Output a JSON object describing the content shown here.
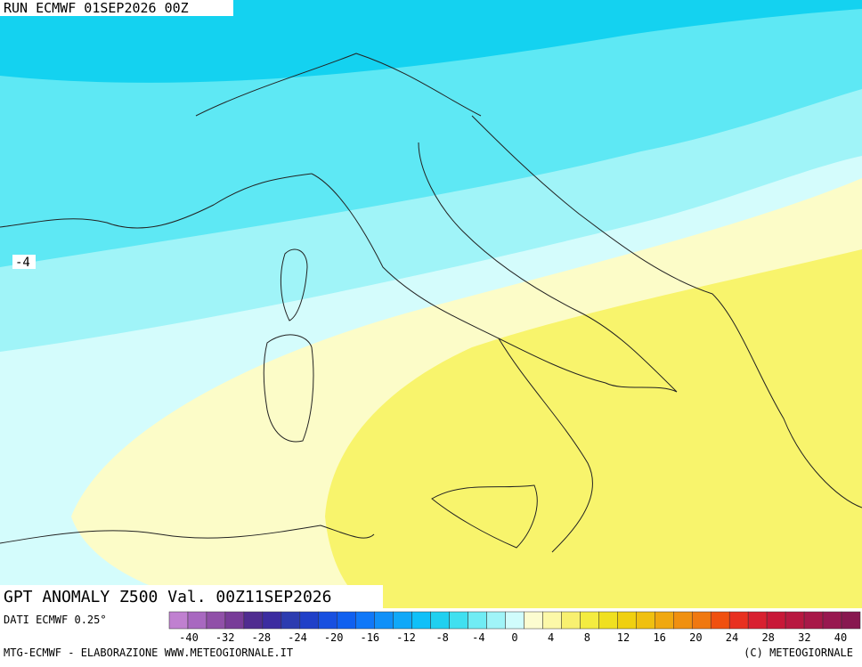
{
  "header": {
    "run": "RUN ECMWF 01SEP2026 00Z"
  },
  "map": {
    "contour_label": "-4",
    "title": "GPT ANOMALY Z500 Val. 00Z11SEP2026",
    "source": "DATI ECMWF 0.25°"
  },
  "colorbar": {
    "colors": [
      "#c080d0",
      "#a868c0",
      "#9050a8",
      "#783c98",
      "#502c90",
      "#3c2ca0",
      "#2c3cb0",
      "#2040c8",
      "#1850e0",
      "#1060f0",
      "#1078f8",
      "#1090f8",
      "#10a8f8",
      "#10c0f8",
      "#20d0f0",
      "#40e0f0",
      "#70ecf4",
      "#a0f4f8",
      "#d0fcfc",
      "#fcfcd0",
      "#fcf8a8",
      "#f8f070",
      "#f4ec40",
      "#f0e020",
      "#f0d010",
      "#f0c010",
      "#f0a810",
      "#f09010",
      "#f07810",
      "#f05010",
      "#e83020",
      "#d82030",
      "#c81838",
      "#b81840",
      "#a81848",
      "#981850",
      "#881850"
    ],
    "labels": [
      "-40",
      "-32",
      "-28",
      "-24",
      "-20",
      "-16",
      "-12",
      "-8",
      "-4",
      "0",
      "4",
      "8",
      "12",
      "16",
      "20",
      "24",
      "28",
      "32",
      "40"
    ]
  },
  "footer": {
    "left": "MTG-ECMWF - ELABORAZIONE WWW.METEOGIORNALE.IT",
    "right": "(C) METEOGIORNALE"
  }
}
